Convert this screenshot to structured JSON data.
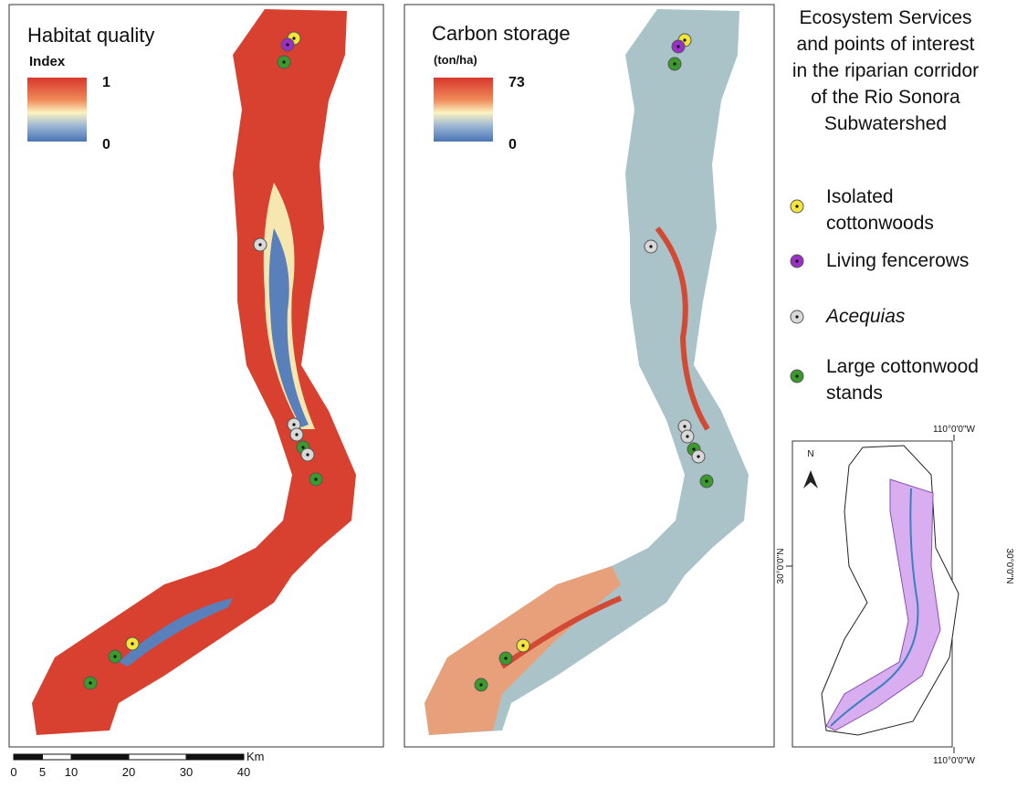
{
  "panels": [
    {
      "title": "Habitat quality",
      "legend_title": "Index",
      "legend_max": "1",
      "legend_min": "0"
    },
    {
      "title": "Carbon storage",
      "legend_title": "(ton/ha)",
      "legend_max": "73",
      "legend_min": "0"
    }
  ],
  "info": {
    "title_lines": [
      "Ecosystem Services",
      "and points of interest",
      "in the riparian corridor",
      "of the Rio Sonora",
      "Subwatershed"
    ],
    "legend": [
      {
        "lines": [
          "Isolated",
          "cottonwoods"
        ]
      },
      {
        "lines": [
          "Living fencerows"
        ]
      },
      {
        "lines": [
          "Acequias"
        ]
      },
      {
        "lines": [
          "Large cottonwood",
          "stands"
        ]
      }
    ]
  },
  "inset": {
    "north": "N",
    "lon_top": "110°0'0\"W",
    "lon_bottom": "110°0'0\"W",
    "lat_left": "30°0'0\"N",
    "lat_right": "30°0'0\"N"
  },
  "scale_bar": {
    "unit": "Km",
    "ticks": [
      0,
      5,
      10,
      20,
      30,
      40
    ]
  }
}
